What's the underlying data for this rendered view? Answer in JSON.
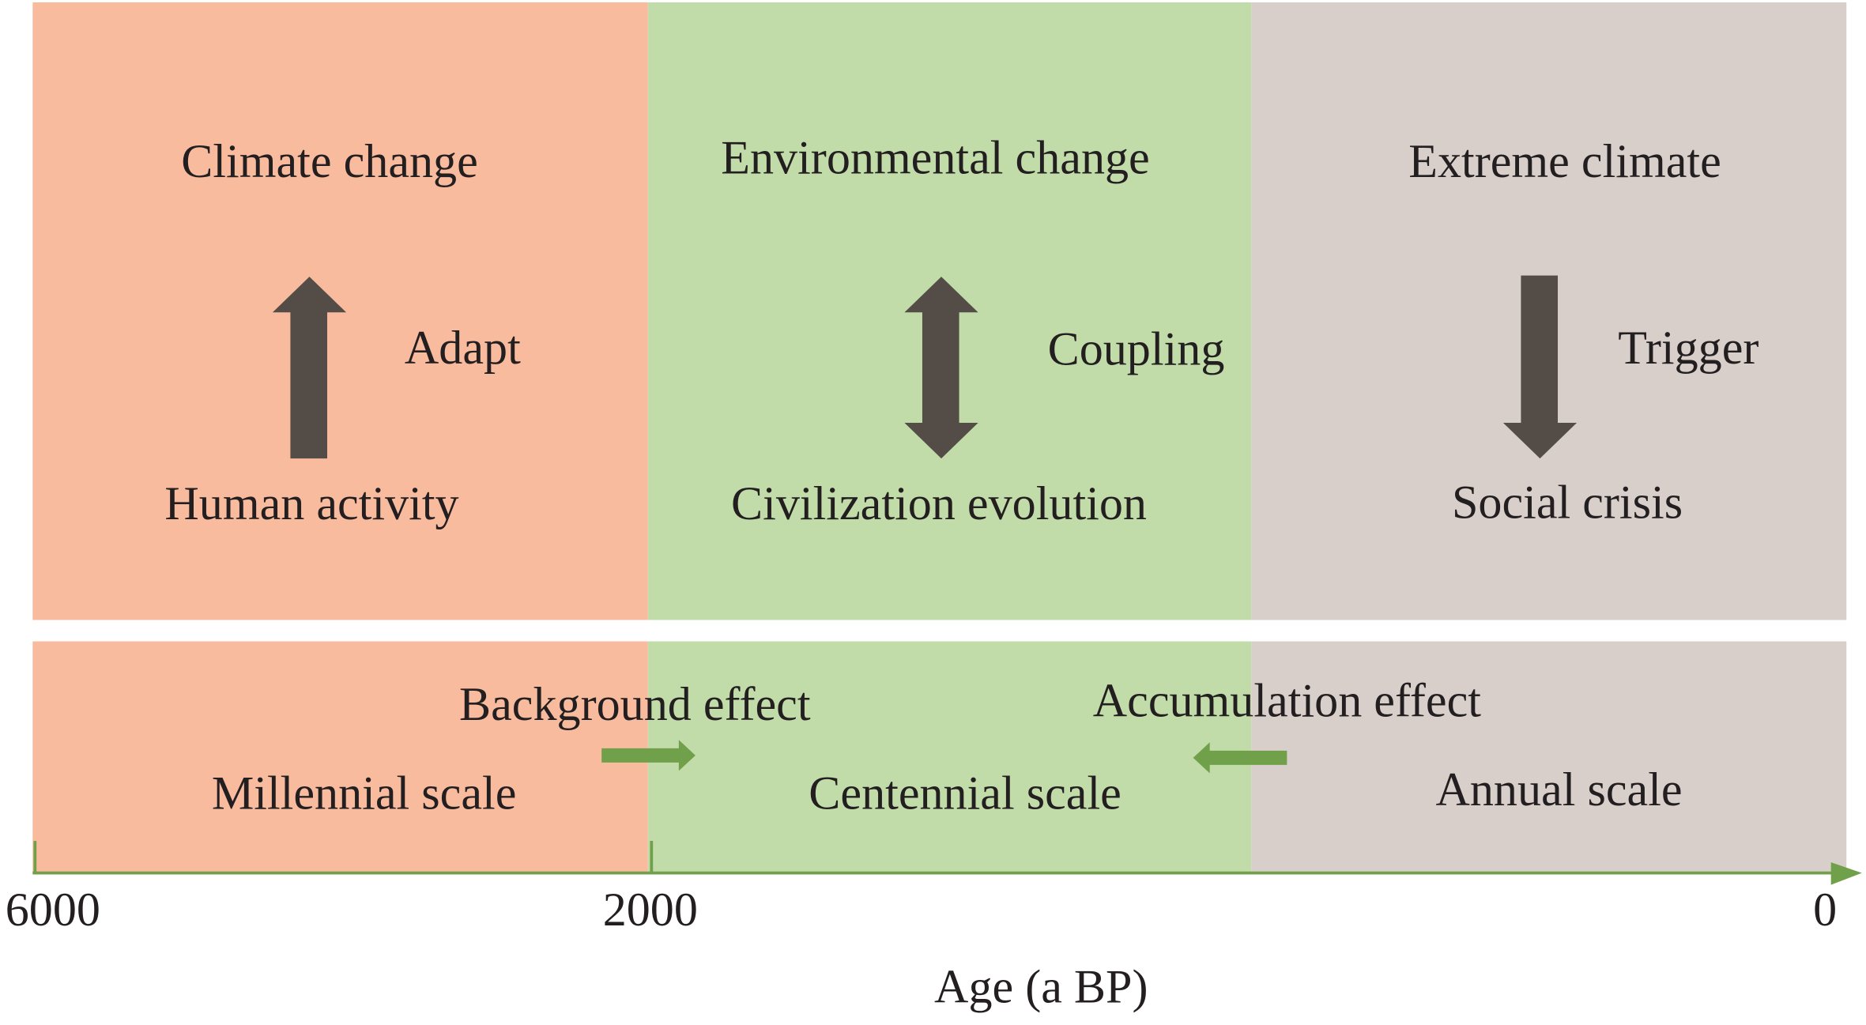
{
  "periods": [
    {
      "top": "Climate change",
      "relation": "Adapt",
      "bottom": "Human activity",
      "scale": "Millennial scale"
    },
    {
      "top": "Environmental change",
      "relation": "Coupling",
      "bottom": "Civilization evolution",
      "scale": "Centennial scale"
    },
    {
      "top": "Extreme climate",
      "relation": "Trigger",
      "bottom": "Social crisis",
      "scale": "Annual scale"
    }
  ],
  "effects": [
    "Background effect",
    "Accumulation effect"
  ],
  "axis": {
    "ticks": [
      "6000",
      "2000",
      "0"
    ],
    "label": "Age (a BP)"
  }
}
